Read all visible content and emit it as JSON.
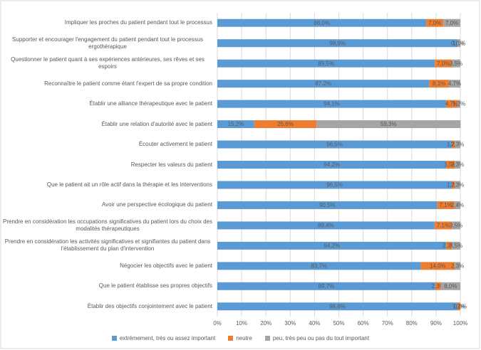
{
  "chart_data": {
    "type": "stacked-bar-horizontal",
    "categories": [
      "Impliquer les proches du patient pendant tout le processus",
      "Supporter et encourager l'engagement du patient pendant tout le processus ergothérapique",
      "Questionner le patient quant à ses expériences antérieures, ses rêves et ses espoirs",
      "Reconnaître le patient comme étant l'expert de sa propre condition",
      "Établir une alliance thérapeutique avec le patient",
      "Établir une relation d'autorité avec le patient",
      "Écouter activement le patient",
      "Respecter les valeurs du patient",
      "Que le patient ait un rôle actif dans la thérapie et les interventions",
      "Avoir une perspective écologique du patient",
      "Prendre en considération les occupations significatives du patient lors du choix des modalités thérapeutiques",
      "Prendre en considération les activités significatives et signifiantes du patient dans l'établissement du plan d'intervention",
      "Négocier les objectifs avec le patient",
      "Que le patient établisse ses propres objectifs",
      "Établir des objectifs conjointement avec le patient"
    ],
    "series": [
      {
        "name": "extrémement, très ou assez important",
        "color": "#5b9bd5",
        "values": [
          86.0,
          98.9,
          89.5,
          87.2,
          94.1,
          15.2,
          96.5,
          94.2,
          96.5,
          90.5,
          89.4,
          94.2,
          83.7,
          89.7,
          98.8
        ],
        "value_labels": [
          "86,0%",
          "98,9%",
          "89,5%",
          "87,2%",
          "94,1%",
          "15,2%",
          "96,5%",
          "94,2%",
          "96,5%",
          "90,5%",
          "89,4%",
          "94,2%",
          "83,7%",
          "89,7%",
          "98,8%"
        ]
      },
      {
        "name": "neutre",
        "color": "#ed7d31",
        "values": [
          7.0,
          0.0,
          7.0,
          8.1,
          4.7,
          25.6,
          1.2,
          3.5,
          1.2,
          7.1,
          7.1,
          2.3,
          14.0,
          2.3,
          1.2
        ],
        "value_labels": [
          "7,0%",
          "0,0%",
          "7,0%",
          "8,1%",
          "4,7%",
          "25,6%",
          "1,2%",
          "3,5%",
          "1,2%",
          "7,1%",
          "7,1%",
          "2,3%",
          "14,0%",
          "2,3%",
          "1,2%"
        ]
      },
      {
        "name": "peu, très peu ou pas du tout important",
        "color": "#a5a5a5",
        "values": [
          7.0,
          1.1,
          3.5,
          4.7,
          1.2,
          59.3,
          2.3,
          2.3,
          2.3,
          2.4,
          3.5,
          3.5,
          2.3,
          8.0,
          0.0
        ],
        "value_labels": [
          "7,0%",
          "1,1%",
          "3,5%",
          "4,7%",
          "1,2%",
          "59,3%",
          "2,3%",
          "2,3%",
          "2,3%",
          "2,4%",
          "3,5%",
          "3,5%",
          "2,3%",
          "8,0%",
          "0,0%"
        ]
      }
    ],
    "xlim": [
      0,
      100
    ],
    "xticks": [
      {
        "value": 0,
        "label": "0%"
      },
      {
        "value": 10,
        "label": "10%"
      },
      {
        "value": 20,
        "label": "20%"
      },
      {
        "value": 30,
        "label": "30%"
      },
      {
        "value": 40,
        "label": "40%"
      },
      {
        "value": 50,
        "label": "50%"
      },
      {
        "value": 60,
        "label": "60%"
      },
      {
        "value": 70,
        "label": "70%"
      },
      {
        "value": 80,
        "label": "80%"
      },
      {
        "value": 90,
        "label": "90%"
      },
      {
        "value": 100,
        "label": "100%"
      }
    ],
    "grid": true,
    "legend": "bottom"
  }
}
